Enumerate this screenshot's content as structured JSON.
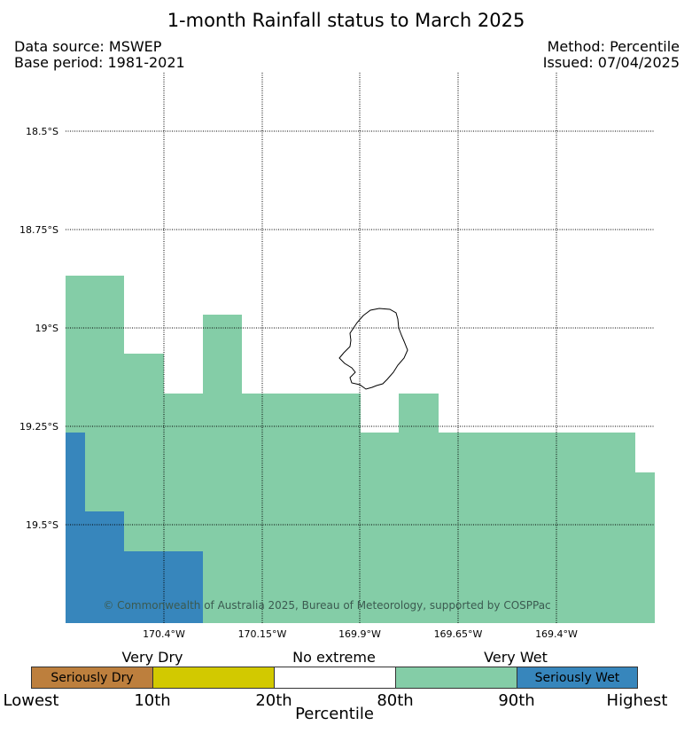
{
  "title": "1-month Rainfall status to March 2025",
  "header": {
    "data_source": "Data source: MSWEP",
    "base_period": "Base period: 1981-2021",
    "method": "Method: Percentile",
    "issued": "Issued: 07/04/2025"
  },
  "map": {
    "lat_labels": [
      "18.5°S",
      "18.75°S",
      "19°S",
      "19.25°S",
      "19.5°S"
    ],
    "lon_labels": [
      "170.4°W",
      "170.15°W",
      "169.9°W",
      "169.65°W",
      "169.4°W"
    ],
    "copyright": "© Commonwealth of Australia 2025, Bureau of Meteorology, supported by COSPPac",
    "colors": {
      "wet": "#84cda7",
      "seriously_wet": "#3786bc",
      "grid": "#000000",
      "coast": "#000000"
    }
  },
  "legend": {
    "groups": [
      "Very Dry",
      "No extreme",
      "Very Wet"
    ],
    "boxes": [
      {
        "label": "Seriously Dry",
        "color": "#bd7f3d"
      },
      {
        "label": "",
        "color": "#d2c900"
      },
      {
        "label": "",
        "color": "#ffffff"
      },
      {
        "label": "",
        "color": "#84cda7"
      },
      {
        "label": "Seriously Wet",
        "color": "#3786bc"
      }
    ],
    "ticks": [
      "Lowest",
      "10th",
      "20th",
      "80th",
      "90th",
      "Highest"
    ],
    "axis_label": "Percentile"
  }
}
